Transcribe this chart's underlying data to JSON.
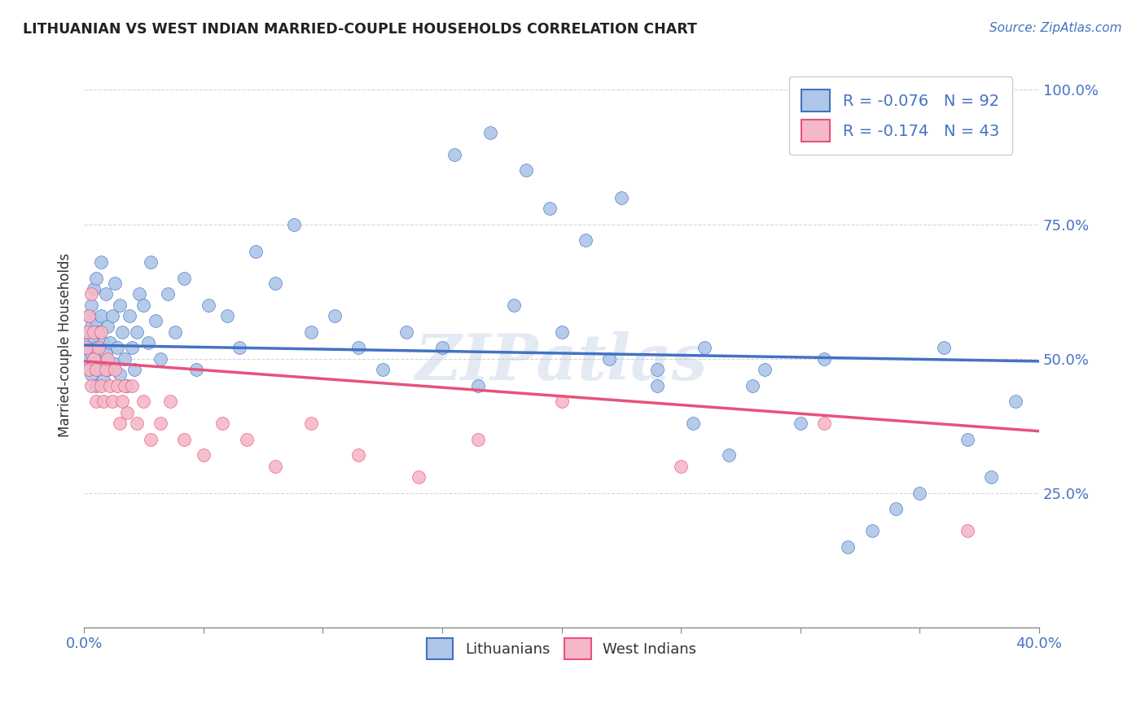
{
  "title": "LITHUANIAN VS WEST INDIAN MARRIED-COUPLE HOUSEHOLDS CORRELATION CHART",
  "source": "Source: ZipAtlas.com",
  "ylabel": "Married-couple Households",
  "xlim": [
    0.0,
    0.4
  ],
  "ylim": [
    0.0,
    1.05
  ],
  "yticks": [
    0.25,
    0.5,
    0.75,
    1.0
  ],
  "ytick_labels": [
    "25.0%",
    "50.0%",
    "75.0%",
    "100.0%"
  ],
  "xticks": [
    0.0,
    0.05,
    0.1,
    0.15,
    0.2,
    0.25,
    0.3,
    0.35,
    0.4
  ],
  "xtick_labels": [
    "0.0%",
    "",
    "",
    "",
    "",
    "",
    "",
    "",
    "40.0%"
  ],
  "lithuanian_R": -0.076,
  "lithuanian_N": 92,
  "westindian_R": -0.174,
  "westindian_N": 43,
  "color_lithuanian": "#aec6e8",
  "color_westindian": "#f4b8c8",
  "color_line_lithuanian": "#4472c4",
  "color_line_westindian": "#e8527a",
  "watermark": "ZIPatlas",
  "lit_x": [
    0.001,
    0.001,
    0.001,
    0.002,
    0.002,
    0.002,
    0.002,
    0.003,
    0.003,
    0.003,
    0.003,
    0.004,
    0.004,
    0.004,
    0.005,
    0.005,
    0.005,
    0.005,
    0.006,
    0.006,
    0.007,
    0.007,
    0.007,
    0.008,
    0.008,
    0.009,
    0.009,
    0.01,
    0.01,
    0.011,
    0.012,
    0.013,
    0.013,
    0.014,
    0.015,
    0.015,
    0.016,
    0.017,
    0.018,
    0.019,
    0.02,
    0.021,
    0.022,
    0.023,
    0.025,
    0.027,
    0.028,
    0.03,
    0.032,
    0.035,
    0.038,
    0.042,
    0.047,
    0.052,
    0.06,
    0.065,
    0.072,
    0.08,
    0.088,
    0.095,
    0.105,
    0.115,
    0.125,
    0.135,
    0.15,
    0.165,
    0.18,
    0.2,
    0.22,
    0.24,
    0.26,
    0.28,
    0.3,
    0.31,
    0.32,
    0.33,
    0.34,
    0.35,
    0.36,
    0.37,
    0.38,
    0.39,
    0.155,
    0.17,
    0.185,
    0.195,
    0.21,
    0.225,
    0.24,
    0.255,
    0.27,
    0.285
  ],
  "lit_y": [
    0.5,
    0.52,
    0.54,
    0.48,
    0.53,
    0.55,
    0.58,
    0.47,
    0.51,
    0.56,
    0.6,
    0.49,
    0.54,
    0.63,
    0.45,
    0.52,
    0.57,
    0.65,
    0.48,
    0.55,
    0.5,
    0.58,
    0.68,
    0.46,
    0.53,
    0.51,
    0.62,
    0.48,
    0.56,
    0.53,
    0.58,
    0.49,
    0.64,
    0.52,
    0.47,
    0.6,
    0.55,
    0.5,
    0.45,
    0.58,
    0.52,
    0.48,
    0.55,
    0.62,
    0.6,
    0.53,
    0.68,
    0.57,
    0.5,
    0.62,
    0.55,
    0.65,
    0.48,
    0.6,
    0.58,
    0.52,
    0.7,
    0.64,
    0.75,
    0.55,
    0.58,
    0.52,
    0.48,
    0.55,
    0.52,
    0.45,
    0.6,
    0.55,
    0.5,
    0.48,
    0.52,
    0.45,
    0.38,
    0.5,
    0.15,
    0.18,
    0.22,
    0.25,
    0.52,
    0.35,
    0.28,
    0.42,
    0.88,
    0.92,
    0.85,
    0.78,
    0.72,
    0.8,
    0.45,
    0.38,
    0.32,
    0.48
  ],
  "wi_x": [
    0.001,
    0.001,
    0.002,
    0.002,
    0.003,
    0.003,
    0.004,
    0.004,
    0.005,
    0.005,
    0.006,
    0.007,
    0.007,
    0.008,
    0.009,
    0.01,
    0.011,
    0.012,
    0.013,
    0.014,
    0.015,
    0.016,
    0.017,
    0.018,
    0.02,
    0.022,
    0.025,
    0.028,
    0.032,
    0.036,
    0.042,
    0.05,
    0.058,
    0.068,
    0.08,
    0.095,
    0.115,
    0.14,
    0.165,
    0.2,
    0.25,
    0.31,
    0.37
  ],
  "wi_y": [
    0.52,
    0.55,
    0.48,
    0.58,
    0.45,
    0.62,
    0.5,
    0.55,
    0.42,
    0.48,
    0.52,
    0.45,
    0.55,
    0.42,
    0.48,
    0.5,
    0.45,
    0.42,
    0.48,
    0.45,
    0.38,
    0.42,
    0.45,
    0.4,
    0.45,
    0.38,
    0.42,
    0.35,
    0.38,
    0.42,
    0.35,
    0.32,
    0.38,
    0.35,
    0.3,
    0.38,
    0.32,
    0.28,
    0.35,
    0.42,
    0.3,
    0.38,
    0.18
  ]
}
